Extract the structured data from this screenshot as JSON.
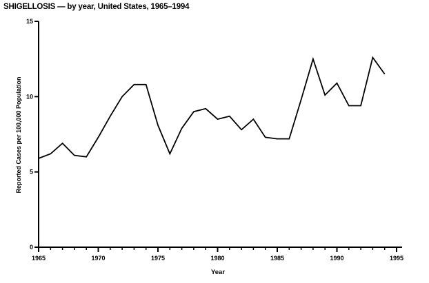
{
  "page": {
    "title": "SHIGELLOSIS — by year, United States, 1965–1994"
  },
  "chart_data": {
    "type": "line",
    "title": "SHIGELLOSIS — by year, United States, 1965–1994",
    "xlabel": "Year",
    "ylabel": "Reported Cases per 100,000 Population",
    "xlim": [
      1965,
      1995
    ],
    "ylim": [
      0,
      15
    ],
    "y_ticks": [
      0,
      5,
      10,
      15
    ],
    "x_major_ticks": [
      1965,
      1970,
      1975,
      1980,
      1985,
      1990,
      1995
    ],
    "x_minor_tick_interval": 1,
    "grid": false,
    "legend_position": "none",
    "line_color": "#000000",
    "axis_color": "#000000",
    "background_color": "#ffffff",
    "series": [
      {
        "name": "Reported shigellosis cases per 100,000 population",
        "x": [
          1965,
          1966,
          1967,
          1968,
          1969,
          1970,
          1971,
          1972,
          1973,
          1974,
          1975,
          1976,
          1977,
          1978,
          1979,
          1980,
          1981,
          1982,
          1983,
          1984,
          1985,
          1986,
          1987,
          1988,
          1989,
          1990,
          1991,
          1992,
          1993,
          1994
        ],
        "y": [
          5.9,
          6.2,
          6.9,
          6.1,
          6.0,
          7.3,
          8.7,
          10.0,
          10.8,
          10.8,
          8.1,
          6.2,
          7.9,
          9.0,
          9.2,
          8.5,
          8.7,
          7.8,
          8.5,
          7.3,
          7.2,
          7.2,
          9.8,
          12.5,
          10.1,
          10.9,
          9.4,
          9.4,
          12.6,
          11.5
        ]
      }
    ]
  }
}
